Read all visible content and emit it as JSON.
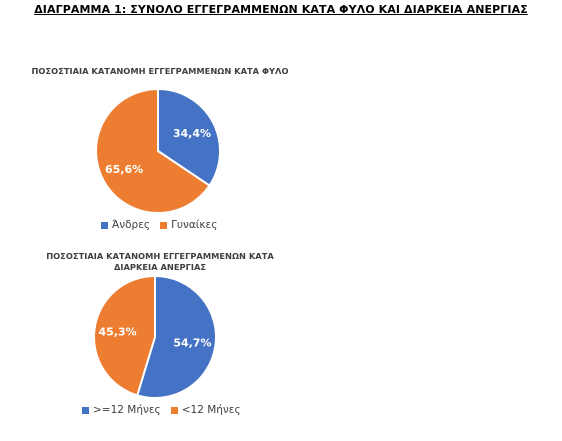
{
  "page_title": "ΔΙΑΓΡΑΜΜΑ 1: ΣΥΝΟΛΟ ΕΓΓΕΓΡΑΜΜΕΝΩΝ ΚΑΤΑ ΦΥΛΟ ΚΑΙ ΔΙΑΡΚΕΙΑ ΑΝΕΡΓΙΑΣ",
  "colors": {
    "blue": "#4472c4",
    "orange": "#ed7d31"
  },
  "chart_data": [
    {
      "type": "pie",
      "title": "ΠΟΣΟΣΤΙΑΙΑ ΚΑΤΑΝΟΜΗ ΕΓΓΕΓΡΑΜΜΕΝΩΝ ΚΑΤΑ ΦΥΛΟ",
      "categories": [
        "Άνδρες",
        "Γυναίκες"
      ],
      "values": [
        34.4,
        65.6
      ],
      "labels": [
        "34,4%",
        "65,6%"
      ],
      "colors": [
        "#4472c4",
        "#ed7d31"
      ],
      "legend": "bottom"
    },
    {
      "type": "pie",
      "title": "ΠΟΣΟΣΤΙΑΙΑ ΚΑΤΑΝΟΜΗ ΕΓΓΕΓΡΑΜΜΕΝΩΝ ΚΑΤΑ ΔΙΑΡΚΕΙΑ ΑΝΕΡΓΙΑΣ",
      "categories": [
        ">=12 Μήνες",
        "<12 Μήνες"
      ],
      "values": [
        54.7,
        45.3
      ],
      "labels": [
        "54,7%",
        "45,3%"
      ],
      "colors": [
        "#4472c4",
        "#ed7d31"
      ],
      "legend": "bottom"
    }
  ]
}
